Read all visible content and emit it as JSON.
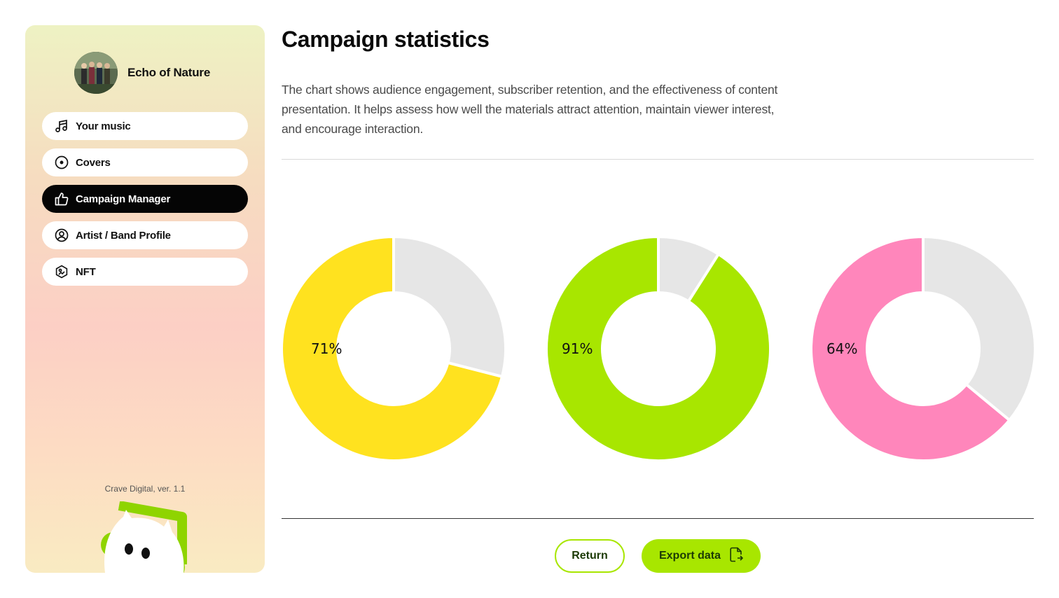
{
  "sidebar": {
    "profile_name": "Echo of Nature",
    "items": [
      {
        "label": "Your music",
        "icon": "music-note-icon",
        "active": false
      },
      {
        "label": "Covers",
        "icon": "disc-icon",
        "active": false
      },
      {
        "label": "Campaign Manager",
        "icon": "thumbs-up-icon",
        "active": true
      },
      {
        "label": "Artist / Band Profile",
        "icon": "user-circle-icon",
        "active": false
      },
      {
        "label": "NFT",
        "icon": "nft-icon",
        "active": false
      }
    ],
    "version": "Crave Digital, ver. 1.1"
  },
  "main": {
    "title": "Campaign statistics",
    "description": "The chart shows audience engagement, subscriber retention, and the effectiveness of content presentation. It helps assess how well the materials attract attention, maintain viewer interest, and encourage interaction."
  },
  "chart_data": [
    {
      "type": "pie",
      "values": [
        71,
        29
      ],
      "label": "71%",
      "colors": [
        "#ffe21f",
        "#e6e6e6"
      ]
    },
    {
      "type": "pie",
      "values": [
        91,
        9
      ],
      "label": "91%",
      "colors": [
        "#a8e600",
        "#e6e6e6"
      ]
    },
    {
      "type": "pie",
      "values": [
        64,
        36
      ],
      "label": "64%",
      "colors": [
        "#ff86bb",
        "#e6e6e6"
      ]
    }
  ],
  "actions": {
    "return_label": "Return",
    "export_label": "Export data"
  },
  "colors": {
    "accent": "#a8e600",
    "active_nav": "#050505"
  }
}
